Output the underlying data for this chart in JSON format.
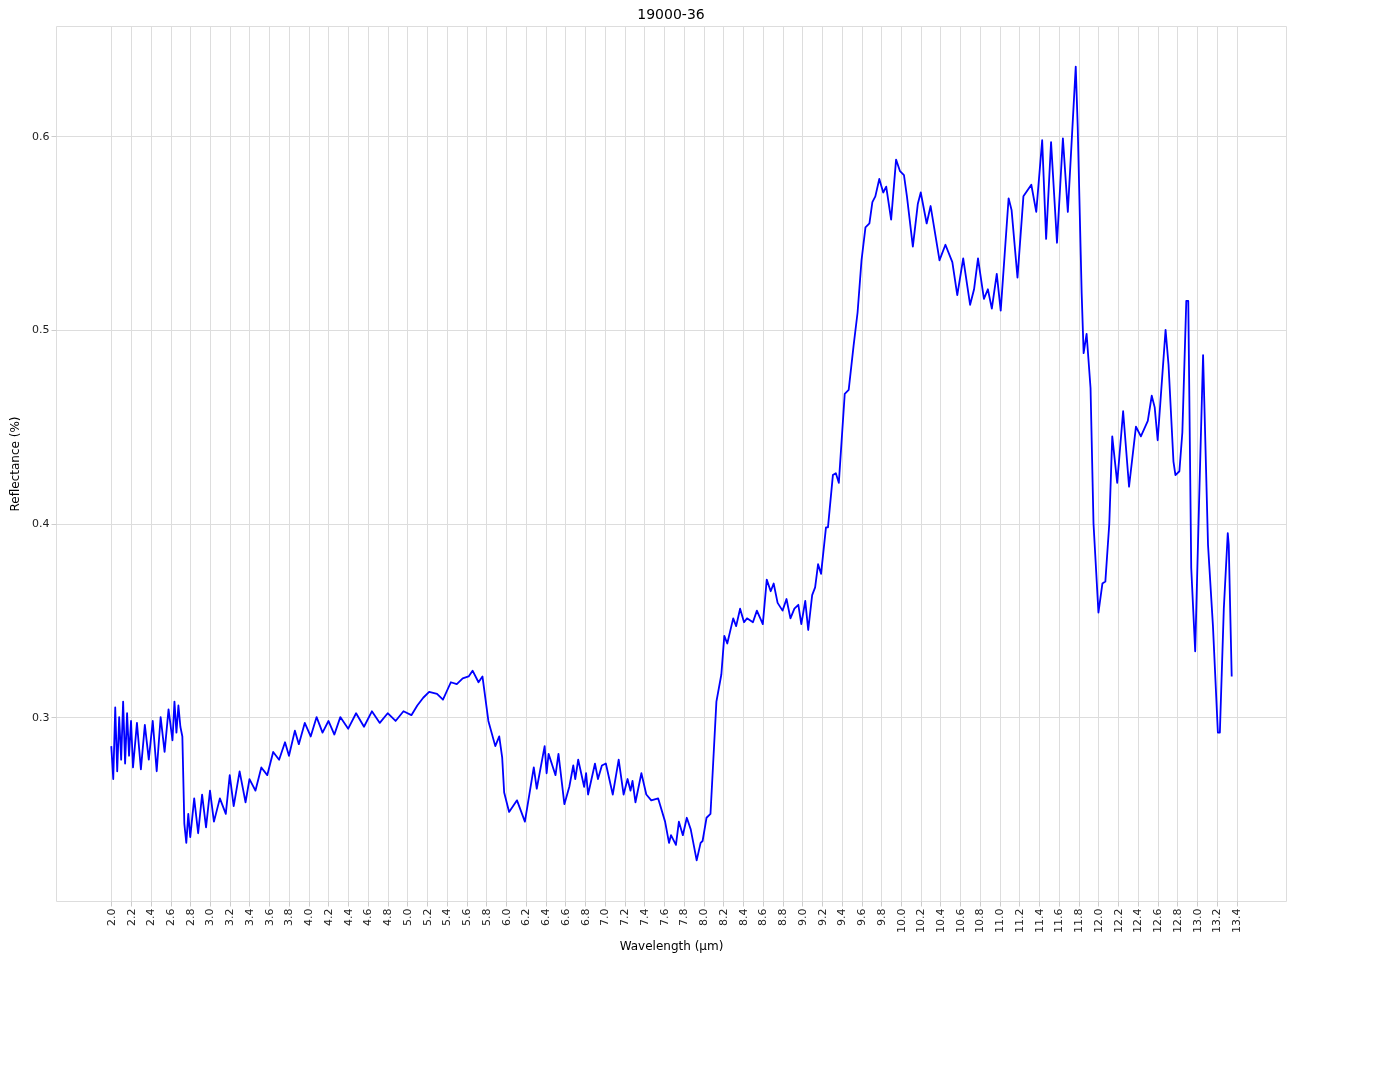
{
  "chart_data": {
    "type": "line",
    "title": "19000-36",
    "xlabel": "Wavelength (µm)",
    "ylabel": "Reflectance (%)",
    "xlim": [
      1.44,
      13.9
    ],
    "ylim": [
      0.205,
      0.657
    ],
    "xticks": [
      {
        "value": 2,
        "label": "2.0"
      },
      {
        "value": 2.2,
        "label": "2.2"
      },
      {
        "value": 2.4,
        "label": "2.4"
      },
      {
        "value": 2.6,
        "label": "2.6"
      },
      {
        "value": 2.8,
        "label": "2.8"
      },
      {
        "value": 3,
        "label": "3.0"
      },
      {
        "value": 3.2,
        "label": "3.2"
      },
      {
        "value": 3.4,
        "label": "3.4"
      },
      {
        "value": 3.6,
        "label": "3.6"
      },
      {
        "value": 3.8,
        "label": "3.8"
      },
      {
        "value": 4,
        "label": "4.0"
      },
      {
        "value": 4.2,
        "label": "4.2"
      },
      {
        "value": 4.4,
        "label": "4.4"
      },
      {
        "value": 4.6,
        "label": "4.6"
      },
      {
        "value": 4.8,
        "label": "4.8"
      },
      {
        "value": 5,
        "label": "5.0"
      },
      {
        "value": 5.2,
        "label": "5.2"
      },
      {
        "value": 5.4,
        "label": "5.4"
      },
      {
        "value": 5.6,
        "label": "5.6"
      },
      {
        "value": 5.8,
        "label": "5.8"
      },
      {
        "value": 6,
        "label": "6.0"
      },
      {
        "value": 6.2,
        "label": "6.2"
      },
      {
        "value": 6.4,
        "label": "6.4"
      },
      {
        "value": 6.6,
        "label": "6.6"
      },
      {
        "value": 6.8,
        "label": "6.8"
      },
      {
        "value": 7,
        "label": "7.0"
      },
      {
        "value": 7.2,
        "label": "7.2"
      },
      {
        "value": 7.4,
        "label": "7.4"
      },
      {
        "value": 7.6,
        "label": "7.6"
      },
      {
        "value": 7.8,
        "label": "7.8"
      },
      {
        "value": 8,
        "label": "8.0"
      },
      {
        "value": 8.2,
        "label": "8.2"
      },
      {
        "value": 8.4,
        "label": "8.4"
      },
      {
        "value": 8.6,
        "label": "8.6"
      },
      {
        "value": 8.8,
        "label": "8.8"
      },
      {
        "value": 9,
        "label": "9.0"
      },
      {
        "value": 9.2,
        "label": "9.2"
      },
      {
        "value": 9.4,
        "label": "9.4"
      },
      {
        "value": 9.6,
        "label": "9.6"
      },
      {
        "value": 9.8,
        "label": "9.8"
      },
      {
        "value": 10,
        "label": "10.0"
      },
      {
        "value": 10.2,
        "label": "10.2"
      },
      {
        "value": 10.4,
        "label": "10.4"
      },
      {
        "value": 10.6,
        "label": "10.6"
      },
      {
        "value": 10.8,
        "label": "10.8"
      },
      {
        "value": 11,
        "label": "11.0"
      },
      {
        "value": 11.2,
        "label": "11.2"
      },
      {
        "value": 11.4,
        "label": "11.4"
      },
      {
        "value": 11.6,
        "label": "11.6"
      },
      {
        "value": 11.8,
        "label": "11.8"
      },
      {
        "value": 12,
        "label": "12.0"
      },
      {
        "value": 12.2,
        "label": "12.2"
      },
      {
        "value": 12.4,
        "label": "12.4"
      },
      {
        "value": 12.6,
        "label": "12.6"
      },
      {
        "value": 12.8,
        "label": "12.8"
      },
      {
        "value": 13,
        "label": "13.0"
      },
      {
        "value": 13.2,
        "label": "13.2"
      },
      {
        "value": 13.4,
        "label": "13.4"
      }
    ],
    "yticks": [
      0.3,
      0.4,
      0.5,
      0.6
    ],
    "grid": true,
    "line_style": "solid",
    "series": [
      {
        "color": "#0000ff",
        "x": [
          2.0,
          2.02,
          2.04,
          2.06,
          2.08,
          2.1,
          2.12,
          2.14,
          2.16,
          2.18,
          2.2,
          2.22,
          2.26,
          2.3,
          2.34,
          2.38,
          2.42,
          2.46,
          2.5,
          2.54,
          2.58,
          2.62,
          2.64,
          2.66,
          2.68,
          2.7,
          2.72,
          2.74,
          2.76,
          2.78,
          2.8,
          2.84,
          2.88,
          2.92,
          2.96,
          3.0,
          3.04,
          3.1,
          3.16,
          3.2,
          3.24,
          3.3,
          3.36,
          3.4,
          3.46,
          3.52,
          3.58,
          3.64,
          3.7,
          3.76,
          3.8,
          3.86,
          3.9,
          3.96,
          4.02,
          4.08,
          4.14,
          4.2,
          4.26,
          4.32,
          4.4,
          4.48,
          4.56,
          4.64,
          4.72,
          4.8,
          4.88,
          4.96,
          5.04,
          5.1,
          5.16,
          5.22,
          5.3,
          5.36,
          5.44,
          5.5,
          5.56,
          5.62,
          5.66,
          5.72,
          5.76,
          5.82,
          5.89,
          5.93,
          5.96,
          5.98,
          6.03,
          6.11,
          6.19,
          6.28,
          6.31,
          6.39,
          6.41,
          6.43,
          6.5,
          6.53,
          6.59,
          6.64,
          6.68,
          6.7,
          6.73,
          6.79,
          6.81,
          6.83,
          6.9,
          6.93,
          6.97,
          7.01,
          7.08,
          7.14,
          7.19,
          7.23,
          7.26,
          7.28,
          7.31,
          7.37,
          7.42,
          7.47,
          7.54,
          7.61,
          7.65,
          7.67,
          7.72,
          7.75,
          7.79,
          7.83,
          7.87,
          7.93,
          7.97,
          7.99,
          8.03,
          8.07,
          8.13,
          8.18,
          8.21,
          8.24,
          8.3,
          8.33,
          8.37,
          8.41,
          8.44,
          8.5,
          8.54,
          8.6,
          8.64,
          8.68,
          8.71,
          8.75,
          8.8,
          8.84,
          8.88,
          8.92,
          8.96,
          8.99,
          9.03,
          9.06,
          9.1,
          9.13,
          9.16,
          9.19,
          9.24,
          9.26,
          9.31,
          9.34,
          9.37,
          9.43,
          9.47,
          9.52,
          9.56,
          9.6,
          9.64,
          9.68,
          9.71,
          9.74,
          9.78,
          9.82,
          9.85,
          9.9,
          9.95,
          9.99,
          10.03,
          10.06,
          10.12,
          10.17,
          10.2,
          10.26,
          10.3,
          10.39,
          10.45,
          10.52,
          10.57,
          10.63,
          10.7,
          10.74,
          10.78,
          10.84,
          10.88,
          10.92,
          10.97,
          11.01,
          11.09,
          11.12,
          11.18,
          11.24,
          11.28,
          11.32,
          11.37,
          11.43,
          11.47,
          11.52,
          11.58,
          11.64,
          11.69,
          11.77,
          11.79,
          11.83,
          11.85,
          11.88,
          11.92,
          11.95,
          12.0,
          12.04,
          12.07,
          12.11,
          12.14,
          12.19,
          12.25,
          12.31,
          12.38,
          12.43,
          12.5,
          12.54,
          12.57,
          12.6,
          12.68,
          12.71,
          12.76,
          12.78,
          12.82,
          12.85,
          12.89,
          12.91,
          12.94,
          12.98,
          13.02,
          13.06,
          13.11,
          13.16,
          13.21,
          13.23,
          13.27,
          13.31,
          13.32,
          13.35
        ],
        "values": [
          0.285,
          0.268,
          0.305,
          0.272,
          0.3,
          0.278,
          0.308,
          0.276,
          0.302,
          0.28,
          0.298,
          0.274,
          0.297,
          0.273,
          0.296,
          0.278,
          0.298,
          0.272,
          0.3,
          0.282,
          0.304,
          0.288,
          0.308,
          0.292,
          0.306,
          0.295,
          0.29,
          0.245,
          0.235,
          0.25,
          0.238,
          0.258,
          0.24,
          0.26,
          0.243,
          0.262,
          0.246,
          0.258,
          0.25,
          0.27,
          0.254,
          0.272,
          0.256,
          0.268,
          0.262,
          0.274,
          0.27,
          0.282,
          0.278,
          0.287,
          0.28,
          0.293,
          0.286,
          0.297,
          0.29,
          0.3,
          0.292,
          0.298,
          0.291,
          0.3,
          0.294,
          0.302,
          0.295,
          0.303,
          0.297,
          0.302,
          0.298,
          0.303,
          0.301,
          0.306,
          0.31,
          0.313,
          0.312,
          0.309,
          0.318,
          0.317,
          0.32,
          0.321,
          0.324,
          0.318,
          0.321,
          0.298,
          0.285,
          0.29,
          0.279,
          0.261,
          0.251,
          0.257,
          0.246,
          0.274,
          0.263,
          0.285,
          0.271,
          0.281,
          0.27,
          0.281,
          0.255,
          0.264,
          0.275,
          0.268,
          0.278,
          0.264,
          0.271,
          0.26,
          0.276,
          0.268,
          0.275,
          0.276,
          0.26,
          0.278,
          0.26,
          0.268,
          0.262,
          0.267,
          0.256,
          0.271,
          0.26,
          0.257,
          0.258,
          0.246,
          0.235,
          0.239,
          0.234,
          0.246,
          0.239,
          0.248,
          0.242,
          0.226,
          0.235,
          0.236,
          0.248,
          0.25,
          0.308,
          0.322,
          0.342,
          0.338,
          0.351,
          0.347,
          0.356,
          0.349,
          0.351,
          0.349,
          0.355,
          0.348,
          0.371,
          0.365,
          0.369,
          0.359,
          0.355,
          0.361,
          0.351,
          0.356,
          0.358,
          0.348,
          0.36,
          0.345,
          0.363,
          0.367,
          0.379,
          0.374,
          0.398,
          0.398,
          0.425,
          0.426,
          0.421,
          0.467,
          0.469,
          0.492,
          0.509,
          0.536,
          0.553,
          0.555,
          0.566,
          0.569,
          0.578,
          0.571,
          0.574,
          0.557,
          0.588,
          0.582,
          0.58,
          0.569,
          0.543,
          0.565,
          0.571,
          0.555,
          0.564,
          0.536,
          0.544,
          0.535,
          0.518,
          0.537,
          0.513,
          0.521,
          0.537,
          0.516,
          0.521,
          0.511,
          0.529,
          0.51,
          0.568,
          0.562,
          0.527,
          0.569,
          0.572,
          0.575,
          0.561,
          0.598,
          0.547,
          0.597,
          0.545,
          0.599,
          0.561,
          0.636,
          0.605,
          0.519,
          0.488,
          0.498,
          0.47,
          0.4,
          0.354,
          0.369,
          0.37,
          0.4,
          0.445,
          0.421,
          0.458,
          0.419,
          0.45,
          0.445,
          0.453,
          0.466,
          0.46,
          0.443,
          0.5,
          0.482,
          0.432,
          0.425,
          0.427,
          0.447,
          0.515,
          0.515,
          0.377,
          0.334,
          0.412,
          0.487,
          0.389,
          0.347,
          0.292,
          0.292,
          0.356,
          0.395,
          0.389,
          0.321
        ]
      }
    ]
  }
}
